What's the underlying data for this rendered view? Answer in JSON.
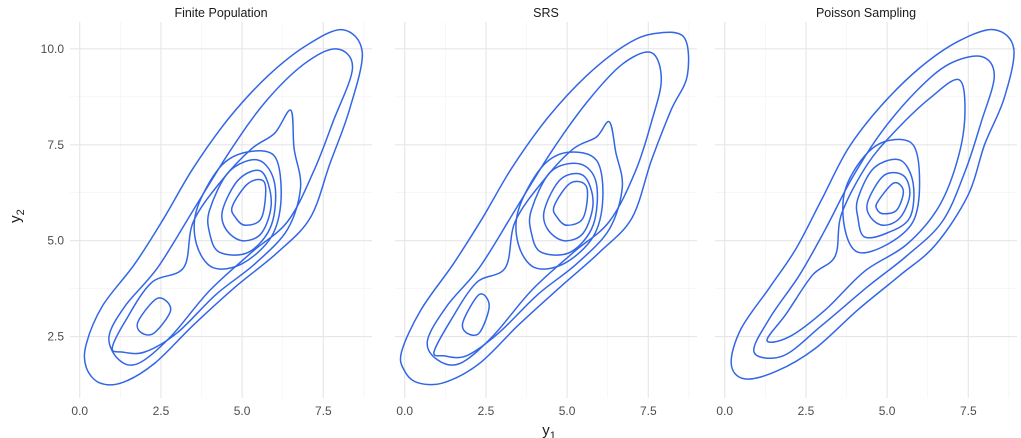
{
  "chart_data": {
    "type": "contour",
    "xlabel": "y",
    "xlabel_sub": "1",
    "ylabel": "y",
    "ylabel_sub": "2",
    "xlim": [
      -0.3,
      9.0
    ],
    "ylim": [
      0.9,
      10.7
    ],
    "x_ticks": [
      0,
      2.5,
      5,
      7.5
    ],
    "x_tick_labels": [
      "0.0",
      "2.5",
      "5.0",
      "7.5"
    ],
    "y_ticks": [
      2.5,
      5,
      7.5,
      10
    ],
    "y_tick_labels": [
      "2.5",
      "5.0",
      "7.5",
      "10.0"
    ],
    "grid": true,
    "line_color": "#3366e6",
    "panels": [
      {
        "title": "Finite Population",
        "contours": [
          [
            [
              0.2,
              2.3
            ],
            [
              0.7,
              3.3
            ],
            [
              1.7,
              4.4
            ],
            [
              2.6,
              5.6
            ],
            [
              3.5,
              6.9
            ],
            [
              4.6,
              8.2
            ],
            [
              5.8,
              9.3
            ],
            [
              7.0,
              10.1
            ],
            [
              8.1,
              10.5
            ],
            [
              8.7,
              9.9
            ],
            [
              8.3,
              8.4
            ],
            [
              7.7,
              7.0
            ],
            [
              7.1,
              5.6
            ],
            [
              6.1,
              4.7
            ],
            [
              4.8,
              3.8
            ],
            [
              3.5,
              2.8
            ],
            [
              2.3,
              1.8
            ],
            [
              1.3,
              1.3
            ],
            [
              0.6,
              1.3
            ],
            [
              0.2,
              1.7
            ]
          ],
          [
            [
              0.9,
              2.5
            ],
            [
              1.4,
              3.3
            ],
            [
              2.4,
              4.3
            ],
            [
              3.5,
              5.8
            ],
            [
              4.6,
              7.3
            ],
            [
              5.7,
              8.6
            ],
            [
              6.9,
              9.6
            ],
            [
              7.9,
              10.0
            ],
            [
              8.4,
              9.5
            ],
            [
              7.8,
              8.1
            ],
            [
              7.2,
              6.8
            ],
            [
              6.4,
              5.5
            ],
            [
              5.3,
              4.7
            ],
            [
              4.0,
              3.7
            ],
            [
              2.8,
              2.5
            ],
            [
              1.8,
              1.8
            ],
            [
              1.2,
              1.9
            ]
          ],
          [
            [
              1.0,
              2.2
            ],
            [
              1.4,
              2.9
            ],
            [
              2.2,
              3.9
            ],
            [
              3.2,
              4.3
            ],
            [
              3.5,
              5.5
            ],
            [
              4.4,
              6.6
            ],
            [
              5.3,
              7.4
            ],
            [
              6.0,
              7.8
            ],
            [
              6.5,
              8.4
            ],
            [
              6.6,
              7.4
            ],
            [
              6.8,
              6.4
            ],
            [
              6.4,
              5.3
            ],
            [
              5.4,
              4.4
            ],
            [
              4.2,
              3.6
            ],
            [
              3.0,
              2.6
            ],
            [
              2.0,
              2.1
            ],
            [
              1.3,
              2.1
            ]
          ],
          [
            [
              3.6,
              5.8
            ],
            [
              4.3,
              6.9
            ],
            [
              5.1,
              7.3
            ],
            [
              6.0,
              7.2
            ],
            [
              6.2,
              6.1
            ],
            [
              5.9,
              5.1
            ],
            [
              5.0,
              4.4
            ],
            [
              4.1,
              4.3
            ],
            [
              3.6,
              4.9
            ]
          ],
          [
            [
              4.0,
              5.8
            ],
            [
              4.6,
              6.8
            ],
            [
              5.5,
              7.1
            ],
            [
              6.0,
              6.5
            ],
            [
              5.9,
              5.4
            ],
            [
              5.2,
              4.7
            ],
            [
              4.3,
              4.7
            ],
            [
              4.0,
              5.2
            ]
          ],
          [
            [
              4.4,
              5.8
            ],
            [
              4.9,
              6.6
            ],
            [
              5.6,
              6.8
            ],
            [
              5.9,
              6.0
            ],
            [
              5.6,
              5.2
            ],
            [
              5.0,
              5.0
            ],
            [
              4.5,
              5.3
            ]
          ],
          [
            [
              4.7,
              5.9
            ],
            [
              5.2,
              6.5
            ],
            [
              5.7,
              6.5
            ],
            [
              5.6,
              5.6
            ],
            [
              5.1,
              5.4
            ],
            [
              4.8,
              5.6
            ]
          ],
          [
            [
              1.8,
              2.9
            ],
            [
              2.4,
              3.5
            ],
            [
              2.8,
              3.2
            ],
            [
              2.3,
              2.6
            ],
            [
              1.9,
              2.6
            ]
          ]
        ]
      },
      {
        "title": "SRS",
        "contours": [
          [
            [
              -0.1,
              2.1
            ],
            [
              0.5,
              3.2
            ],
            [
              1.5,
              4.4
            ],
            [
              2.4,
              5.6
            ],
            [
              3.3,
              6.9
            ],
            [
              4.4,
              8.2
            ],
            [
              5.6,
              9.3
            ],
            [
              6.8,
              10.1
            ],
            [
              7.7,
              10.4
            ],
            [
              8.6,
              10.3
            ],
            [
              8.7,
              9.3
            ],
            [
              8.2,
              8.4
            ],
            [
              7.6,
              7.1
            ],
            [
              7.0,
              5.6
            ],
            [
              6.0,
              4.7
            ],
            [
              4.8,
              3.8
            ],
            [
              3.5,
              2.8
            ],
            [
              2.3,
              1.8
            ],
            [
              1.2,
              1.3
            ],
            [
              0.4,
              1.3
            ],
            [
              0.0,
              1.6
            ]
          ],
          [
            [
              0.7,
              2.4
            ],
            [
              1.3,
              3.3
            ],
            [
              2.3,
              4.3
            ],
            [
              3.4,
              5.8
            ],
            [
              4.5,
              7.3
            ],
            [
              5.6,
              8.6
            ],
            [
              6.7,
              9.6
            ],
            [
              7.6,
              9.9
            ],
            [
              7.9,
              9.2
            ],
            [
              7.6,
              8.1
            ],
            [
              7.1,
              6.8
            ],
            [
              6.3,
              5.5
            ],
            [
              5.2,
              4.7
            ],
            [
              3.9,
              3.7
            ],
            [
              2.7,
              2.5
            ],
            [
              1.7,
              1.8
            ],
            [
              1.0,
              1.9
            ]
          ],
          [
            [
              0.9,
              2.1
            ],
            [
              1.4,
              2.9
            ],
            [
              2.2,
              3.9
            ],
            [
              3.1,
              4.3
            ],
            [
              3.4,
              5.5
            ],
            [
              4.3,
              6.6
            ],
            [
              5.2,
              7.4
            ],
            [
              5.9,
              7.7
            ],
            [
              6.3,
              8.1
            ],
            [
              6.5,
              7.3
            ],
            [
              6.7,
              6.4
            ],
            [
              6.3,
              5.3
            ],
            [
              5.3,
              4.4
            ],
            [
              4.1,
              3.6
            ],
            [
              2.9,
              2.6
            ],
            [
              1.9,
              2.0
            ],
            [
              1.2,
              2.0
            ]
          ],
          [
            [
              3.5,
              5.8
            ],
            [
              4.2,
              6.9
            ],
            [
              5.0,
              7.3
            ],
            [
              5.9,
              7.1
            ],
            [
              6.1,
              6.1
            ],
            [
              5.8,
              5.1
            ],
            [
              4.9,
              4.4
            ],
            [
              4.0,
              4.3
            ],
            [
              3.5,
              4.9
            ]
          ],
          [
            [
              3.9,
              5.8
            ],
            [
              4.5,
              6.8
            ],
            [
              5.4,
              7.0
            ],
            [
              5.9,
              6.5
            ],
            [
              5.8,
              5.4
            ],
            [
              5.1,
              4.7
            ],
            [
              4.2,
              4.7
            ],
            [
              3.9,
              5.2
            ]
          ],
          [
            [
              4.3,
              5.8
            ],
            [
              4.8,
              6.6
            ],
            [
              5.5,
              6.7
            ],
            [
              5.8,
              6.0
            ],
            [
              5.5,
              5.2
            ],
            [
              4.9,
              5.0
            ],
            [
              4.4,
              5.3
            ]
          ],
          [
            [
              4.6,
              5.9
            ],
            [
              5.1,
              6.5
            ],
            [
              5.6,
              6.4
            ],
            [
              5.5,
              5.6
            ],
            [
              5.0,
              5.4
            ],
            [
              4.7,
              5.6
            ]
          ],
          [
            [
              1.8,
              2.9
            ],
            [
              2.3,
              3.6
            ],
            [
              2.6,
              3.3
            ],
            [
              2.3,
              2.6
            ],
            [
              1.9,
              2.6
            ]
          ]
        ]
      },
      {
        "title": "Poisson Sampling",
        "contours": [
          [
            [
              0.2,
              1.8
            ],
            [
              0.5,
              2.7
            ],
            [
              1.4,
              3.8
            ],
            [
              2.2,
              4.8
            ],
            [
              3.0,
              6.1
            ],
            [
              3.8,
              7.4
            ],
            [
              4.8,
              8.5
            ],
            [
              6.0,
              9.5
            ],
            [
              7.2,
              10.2
            ],
            [
              8.3,
              10.5
            ],
            [
              8.9,
              10.0
            ],
            [
              8.6,
              8.7
            ],
            [
              8.0,
              7.5
            ],
            [
              7.5,
              6.2
            ],
            [
              6.5,
              4.9
            ],
            [
              5.4,
              4.1
            ],
            [
              4.1,
              3.2
            ],
            [
              2.8,
              2.2
            ],
            [
              1.6,
              1.6
            ],
            [
              0.6,
              1.4
            ]
          ],
          [
            [
              0.9,
              2.1
            ],
            [
              1.4,
              3.0
            ],
            [
              2.3,
              4.1
            ],
            [
              3.1,
              5.3
            ],
            [
              3.9,
              6.6
            ],
            [
              4.8,
              7.8
            ],
            [
              5.9,
              8.9
            ],
            [
              6.9,
              9.6
            ],
            [
              7.9,
              9.8
            ],
            [
              8.3,
              9.3
            ],
            [
              7.9,
              8.1
            ],
            [
              7.4,
              6.8
            ],
            [
              6.7,
              5.5
            ],
            [
              5.6,
              4.6
            ],
            [
              4.4,
              3.8
            ],
            [
              3.0,
              2.8
            ],
            [
              1.8,
              2.0
            ]
          ],
          [
            [
              1.3,
              2.4
            ],
            [
              1.9,
              3.1
            ],
            [
              2.7,
              4.1
            ],
            [
              3.4,
              4.6
            ],
            [
              3.6,
              5.7
            ],
            [
              4.4,
              7.0
            ],
            [
              5.3,
              7.9
            ],
            [
              6.3,
              8.7
            ],
            [
              7.2,
              9.2
            ],
            [
              7.4,
              8.4
            ],
            [
              7.2,
              7.2
            ],
            [
              6.6,
              5.9
            ],
            [
              5.6,
              4.9
            ],
            [
              4.3,
              4.2
            ],
            [
              3.1,
              3.2
            ],
            [
              2.0,
              2.5
            ]
          ],
          [
            [
              3.7,
              6.3
            ],
            [
              4.3,
              7.2
            ],
            [
              5.0,
              7.6
            ],
            [
              5.8,
              7.5
            ],
            [
              6.0,
              6.5
            ],
            [
              5.8,
              5.5
            ],
            [
              5.0,
              4.9
            ],
            [
              4.1,
              4.7
            ],
            [
              3.7,
              5.3
            ]
          ],
          [
            [
              4.1,
              6.1
            ],
            [
              4.6,
              6.9
            ],
            [
              5.4,
              7.1
            ],
            [
              5.8,
              6.5
            ],
            [
              5.7,
              5.6
            ],
            [
              5.0,
              5.2
            ],
            [
              4.3,
              5.1
            ],
            [
              4.1,
              5.6
            ]
          ],
          [
            [
              4.4,
              6.0
            ],
            [
              4.9,
              6.7
            ],
            [
              5.5,
              6.7
            ],
            [
              5.7,
              6.2
            ],
            [
              5.4,
              5.6
            ],
            [
              4.9,
              5.4
            ],
            [
              4.5,
              5.6
            ]
          ],
          [
            [
              4.7,
              6.0
            ],
            [
              5.2,
              6.5
            ],
            [
              5.5,
              6.3
            ],
            [
              5.3,
              5.8
            ],
            [
              4.9,
              5.7
            ],
            [
              4.7,
              5.8
            ]
          ]
        ]
      }
    ]
  }
}
